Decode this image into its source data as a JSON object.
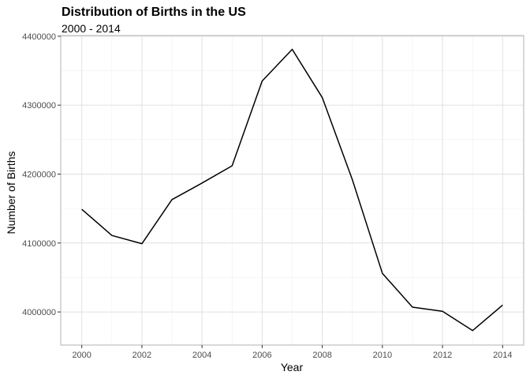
{
  "chart_data": {
    "type": "line",
    "title": "Distribution of Births in the US",
    "subtitle": "2000 - 2014",
    "xlabel": "Year",
    "ylabel": "Number of Births",
    "x": [
      2000,
      2001,
      2002,
      2003,
      2004,
      2005,
      2006,
      2007,
      2008,
      2009,
      2010,
      2011,
      2012,
      2013,
      2014
    ],
    "series": [
      {
        "values": [
          4149000,
          4111000,
          4099000,
          4163000,
          4187000,
          4212000,
          4335000,
          4381000,
          4311000,
          4192000,
          4056000,
          4007000,
          4001000,
          3973000,
          4010000
        ]
      }
    ],
    "xlim": [
      1999.3,
      2014.7
    ],
    "ylim": [
      3952000,
      4401000
    ],
    "x_ticks": [
      2000,
      2002,
      2004,
      2006,
      2008,
      2010,
      2012,
      2014
    ],
    "x_tick_labels": [
      "2000",
      "2002",
      "2004",
      "2006",
      "2008",
      "2010",
      "2012",
      "2014"
    ],
    "y_ticks": [
      4000000,
      4100000,
      4200000,
      4300000,
      4400000
    ],
    "y_tick_labels": [
      "4000000",
      "4100000",
      "4200000",
      "4300000",
      "4400000"
    ],
    "grid": true,
    "line_color": "#000000",
    "grid_major_color": "#e0e0e0",
    "grid_minor_color": "#f0f0f0",
    "panel_border_color": "#b3b3b3"
  }
}
